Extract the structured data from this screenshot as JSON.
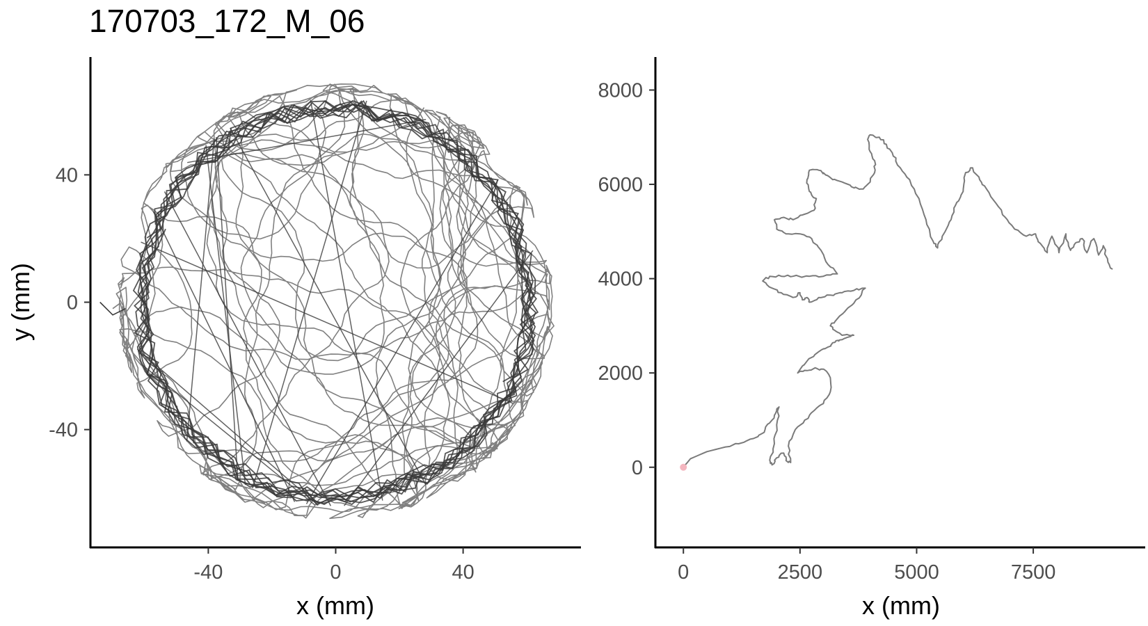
{
  "title": "170703_172_M_06",
  "chart_data": [
    {
      "type": "line",
      "panel": "left",
      "xlabel": "x (mm)",
      "ylabel": "y (mm)",
      "xlim": [
        -77,
        77
      ],
      "ylim": [
        -77,
        77
      ],
      "xticks": [
        -40,
        0,
        40
      ],
      "yticks": [
        -40,
        0,
        40
      ],
      "xtick_labels": [
        "-40",
        "0",
        "40"
      ],
      "ytick_labels": [
        "-40",
        "0",
        "40"
      ],
      "grid": false,
      "legend": "none",
      "description_of_marks": "dense random-walk trajectory filling a circular arena of radius ~68 mm, darker overlapping trace along the arena wall",
      "arena": {
        "center": [
          0,
          0
        ],
        "radius": 68
      },
      "start_point": [
        -70,
        -2
      ],
      "colors": {
        "trajectory": "#808080",
        "trajectory_dark": "#3a3a3a"
      }
    },
    {
      "type": "line",
      "panel": "right",
      "xlabel": "x (mm)",
      "ylabel": "",
      "xlim": [
        -600,
        9900
      ],
      "ylim": [
        -1700,
        8700
      ],
      "xticks": [
        0,
        2500,
        5000,
        7500
      ],
      "yticks": [
        0,
        2000,
        4000,
        6000,
        8000
      ],
      "xtick_labels": [
        "0",
        "2500",
        "5000",
        "7500"
      ],
      "ytick_labels": [
        "0",
        "2000",
        "4000",
        "6000",
        "8000"
      ],
      "grid": false,
      "legend": "none",
      "start_marker": [
        0,
        0
      ],
      "colors": {
        "path": "#7a7a7a",
        "start_marker": "#f4b6bf"
      },
      "path": [
        [
          0,
          0
        ],
        [
          150,
          180
        ],
        [
          500,
          330
        ],
        [
          900,
          430
        ],
        [
          1300,
          530
        ],
        [
          1600,
          650
        ],
        [
          1750,
          800
        ],
        [
          1900,
          1000
        ],
        [
          2000,
          1200
        ],
        [
          2050,
          1280
        ],
        [
          2000,
          900
        ],
        [
          1950,
          500
        ],
        [
          1850,
          150
        ],
        [
          1900,
          50
        ],
        [
          2000,
          200
        ],
        [
          2150,
          300
        ],
        [
          2200,
          150
        ],
        [
          2300,
          100
        ],
        [
          2250,
          450
        ],
        [
          2400,
          800
        ],
        [
          2600,
          1000
        ],
        [
          2800,
          1200
        ],
        [
          3000,
          1350
        ],
        [
          3150,
          1600
        ],
        [
          3150,
          1900
        ],
        [
          3050,
          2050
        ],
        [
          2850,
          2100
        ],
        [
          2650,
          2050
        ],
        [
          2450,
          2000
        ],
        [
          2650,
          2250
        ],
        [
          2900,
          2450
        ],
        [
          3100,
          2550
        ],
        [
          3250,
          2650
        ],
        [
          3350,
          2700
        ],
        [
          3500,
          2750
        ],
        [
          3650,
          2800
        ],
        [
          3400,
          2800
        ],
        [
          3250,
          2900
        ],
        [
          3150,
          3000
        ],
        [
          3300,
          3150
        ],
        [
          3500,
          3350
        ],
        [
          3700,
          3550
        ],
        [
          3900,
          3800
        ],
        [
          3650,
          3750
        ],
        [
          3400,
          3700
        ],
        [
          3150,
          3650
        ],
        [
          2900,
          3600
        ],
        [
          2700,
          3500
        ],
        [
          2650,
          3600
        ],
        [
          2550,
          3550
        ],
        [
          2500,
          3700
        ],
        [
          2350,
          3600
        ],
        [
          2100,
          3700
        ],
        [
          1900,
          3800
        ],
        [
          1700,
          3950
        ],
        [
          1850,
          4050
        ],
        [
          2100,
          4050
        ],
        [
          2350,
          4050
        ],
        [
          2700,
          4050
        ],
        [
          3000,
          4050
        ],
        [
          3300,
          4100
        ],
        [
          3100,
          4300
        ],
        [
          2950,
          4600
        ],
        [
          2750,
          4850
        ],
        [
          2500,
          4950
        ],
        [
          2200,
          4950
        ],
        [
          2000,
          5050
        ],
        [
          1950,
          5250
        ],
        [
          2150,
          5300
        ],
        [
          2350,
          5250
        ],
        [
          2550,
          5350
        ],
        [
          2800,
          5450
        ],
        [
          2850,
          5700
        ],
        [
          2700,
          5850
        ],
        [
          2650,
          6100
        ],
        [
          2700,
          6300
        ],
        [
          2900,
          6300
        ],
        [
          3050,
          6200
        ],
        [
          3200,
          6100
        ],
        [
          3400,
          6050
        ],
        [
          3600,
          5950
        ],
        [
          3800,
          5900
        ],
        [
          3950,
          6000
        ],
        [
          4100,
          6250
        ],
        [
          4100,
          6500
        ],
        [
          4000,
          6700
        ],
        [
          3950,
          6950
        ],
        [
          4000,
          7050
        ],
        [
          4200,
          7000
        ],
        [
          4350,
          6850
        ],
        [
          4500,
          6600
        ],
        [
          4650,
          6350
        ],
        [
          4850,
          6100
        ],
        [
          5050,
          5700
        ],
        [
          5200,
          5250
        ],
        [
          5350,
          4800
        ],
        [
          5450,
          4650
        ],
        [
          5550,
          4900
        ],
        [
          5700,
          5200
        ],
        [
          5800,
          5500
        ],
        [
          5900,
          5650
        ],
        [
          6000,
          5900
        ],
        [
          6050,
          6250
        ],
        [
          6200,
          6350
        ],
        [
          6350,
          6100
        ],
        [
          6500,
          5900
        ],
        [
          6700,
          5600
        ],
        [
          6900,
          5300
        ],
        [
          7100,
          5050
        ],
        [
          7350,
          4900
        ],
        [
          7550,
          4950
        ],
        [
          7650,
          4750
        ],
        [
          7800,
          4550
        ],
        [
          7900,
          4900
        ],
        [
          8050,
          4550
        ],
        [
          8200,
          4950
        ],
        [
          8300,
          4600
        ],
        [
          8400,
          4750
        ],
        [
          8550,
          4850
        ],
        [
          8650,
          4550
        ],
        [
          8800,
          4850
        ],
        [
          8900,
          4500
        ],
        [
          9000,
          4700
        ],
        [
          9100,
          4350
        ],
        [
          9200,
          4200
        ]
      ]
    }
  ]
}
